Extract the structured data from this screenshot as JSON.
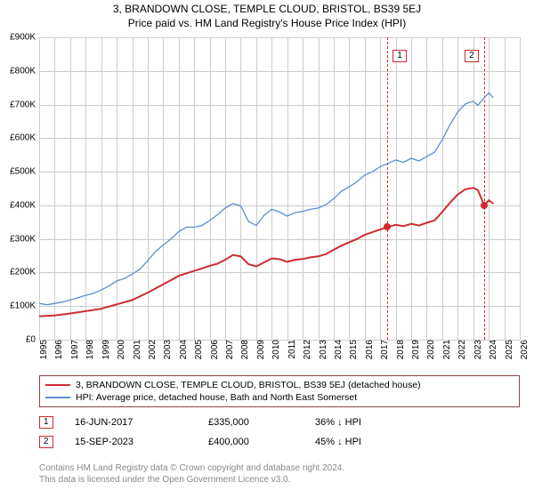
{
  "title": "3, BRANDOWN CLOSE, TEMPLE CLOUD, BRISTOL, BS39 5EJ",
  "subtitle": "Price paid vs. HM Land Registry's House Price Index (HPI)",
  "chart": {
    "type": "line",
    "background_color": "#ffffff",
    "grid_color": "#cccccc",
    "x": {
      "min": 1995,
      "max": 2026,
      "ticks": [
        1995,
        1996,
        1997,
        1998,
        1999,
        2000,
        2001,
        2002,
        2003,
        2004,
        2005,
        2006,
        2007,
        2008,
        2009,
        2010,
        2011,
        2012,
        2013,
        2014,
        2015,
        2016,
        2017,
        2018,
        2019,
        2020,
        2021,
        2022,
        2023,
        2024,
        2025,
        2026
      ]
    },
    "y": {
      "min": 0,
      "max": 900000,
      "step": 100000,
      "tick_labels": [
        "£0",
        "£100K",
        "£200K",
        "£300K",
        "£400K",
        "£500K",
        "£600K",
        "£700K",
        "£800K",
        "£900K"
      ]
    },
    "series": [
      {
        "name": "property",
        "label": "3, BRANDOWN CLOSE, TEMPLE CLOUD, BRISTOL, BS39 5EJ (detached house)",
        "color": "#cd2c30",
        "width": 2,
        "points": [
          [
            1995,
            70000
          ],
          [
            1996,
            72000
          ],
          [
            1997,
            78000
          ],
          [
            1998,
            85000
          ],
          [
            1999,
            92000
          ],
          [
            2000,
            105000
          ],
          [
            2001,
            118000
          ],
          [
            2002,
            140000
          ],
          [
            2003,
            165000
          ],
          [
            2004,
            190000
          ],
          [
            2005,
            205000
          ],
          [
            2005.5,
            212000
          ],
          [
            2006,
            220000
          ],
          [
            2006.5,
            226000
          ],
          [
            2007,
            238000
          ],
          [
            2007.5,
            252000
          ],
          [
            2008,
            248000
          ],
          [
            2008.5,
            225000
          ],
          [
            2009,
            218000
          ],
          [
            2009.5,
            230000
          ],
          [
            2010,
            242000
          ],
          [
            2010.5,
            240000
          ],
          [
            2011,
            232000
          ],
          [
            2011.5,
            238000
          ],
          [
            2012,
            240000
          ],
          [
            2012.5,
            245000
          ],
          [
            2013,
            248000
          ],
          [
            2013.5,
            255000
          ],
          [
            2014,
            268000
          ],
          [
            2014.5,
            280000
          ],
          [
            2015,
            290000
          ],
          [
            2015.5,
            300000
          ],
          [
            2016,
            312000
          ],
          [
            2016.5,
            320000
          ],
          [
            2017,
            328000
          ],
          [
            2017.46,
            335000
          ],
          [
            2018,
            342000
          ],
          [
            2018.5,
            338000
          ],
          [
            2019,
            345000
          ],
          [
            2019.5,
            340000
          ],
          [
            2020,
            348000
          ],
          [
            2020.5,
            355000
          ],
          [
            2021,
            380000
          ],
          [
            2021.5,
            408000
          ],
          [
            2022,
            432000
          ],
          [
            2022.5,
            448000
          ],
          [
            2023,
            452000
          ],
          [
            2023.3,
            445000
          ],
          [
            2023.71,
            400000
          ],
          [
            2024,
            415000
          ],
          [
            2024.3,
            405000
          ]
        ]
      },
      {
        "name": "hpi",
        "label": "HPI: Average price, detached house, Bath and North East Somerset",
        "color": "#5b8fd0",
        "width": 1.3,
        "points": [
          [
            1995,
            108000
          ],
          [
            1995.5,
            104000
          ],
          [
            1996,
            108000
          ],
          [
            1996.5,
            112000
          ],
          [
            1997,
            118000
          ],
          [
            1997.5,
            125000
          ],
          [
            1998,
            132000
          ],
          [
            1998.5,
            138000
          ],
          [
            1999,
            148000
          ],
          [
            1999.5,
            160000
          ],
          [
            2000,
            175000
          ],
          [
            2000.5,
            182000
          ],
          [
            2001,
            195000
          ],
          [
            2001.5,
            210000
          ],
          [
            2002,
            235000
          ],
          [
            2002.5,
            262000
          ],
          [
            2003,
            282000
          ],
          [
            2003.5,
            300000
          ],
          [
            2004,
            322000
          ],
          [
            2004.5,
            335000
          ],
          [
            2005,
            335000
          ],
          [
            2005.5,
            340000
          ],
          [
            2006,
            355000
          ],
          [
            2006.5,
            372000
          ],
          [
            2007,
            392000
          ],
          [
            2007.5,
            405000
          ],
          [
            2008,
            398000
          ],
          [
            2008.5,
            352000
          ],
          [
            2009,
            340000
          ],
          [
            2009.5,
            370000
          ],
          [
            2010,
            388000
          ],
          [
            2010.5,
            380000
          ],
          [
            2011,
            368000
          ],
          [
            2011.5,
            378000
          ],
          [
            2012,
            382000
          ],
          [
            2012.5,
            388000
          ],
          [
            2013,
            392000
          ],
          [
            2013.5,
            402000
          ],
          [
            2014,
            420000
          ],
          [
            2014.5,
            442000
          ],
          [
            2015,
            455000
          ],
          [
            2015.5,
            470000
          ],
          [
            2016,
            490000
          ],
          [
            2016.5,
            500000
          ],
          [
            2017,
            515000
          ],
          [
            2017.5,
            525000
          ],
          [
            2018,
            535000
          ],
          [
            2018.5,
            528000
          ],
          [
            2019,
            540000
          ],
          [
            2019.5,
            532000
          ],
          [
            2020,
            545000
          ],
          [
            2020.5,
            558000
          ],
          [
            2021,
            595000
          ],
          [
            2021.5,
            640000
          ],
          [
            2022,
            678000
          ],
          [
            2022.5,
            702000
          ],
          [
            2023,
            710000
          ],
          [
            2023.3,
            698000
          ],
          [
            2023.7,
            720000
          ],
          [
            2024,
            735000
          ],
          [
            2024.3,
            720000
          ]
        ]
      }
    ],
    "markers": [
      {
        "n": 1,
        "x": 2017.46,
        "y": 335000,
        "color": "#cd2c30"
      },
      {
        "n": 2,
        "x": 2023.71,
        "y": 400000,
        "color": "#cd2c30"
      }
    ]
  },
  "legend": {
    "border_color": "#8b4648",
    "items": [
      {
        "color": "#cd2c30",
        "label": "3, BRANDOWN CLOSE, TEMPLE CLOUD, BRISTOL, BS39 5EJ (detached house)"
      },
      {
        "color": "#5b8fd0",
        "label": "HPI: Average price, detached house, Bath and North East Somerset"
      }
    ]
  },
  "sales": [
    {
      "n": 1,
      "badge_color": "#cd2c30",
      "date": "16-JUN-2017",
      "price": "£335,000",
      "hpi": "36% ↓ HPI"
    },
    {
      "n": 2,
      "badge_color": "#cd2c30",
      "date": "15-SEP-2023",
      "price": "£400,000",
      "hpi": "45% ↓ HPI"
    }
  ],
  "footer": {
    "line1": "Contains HM Land Registry data © Crown copyright and database right 2024.",
    "line2": "This data is licensed under the Open Government Licence v3.0."
  }
}
